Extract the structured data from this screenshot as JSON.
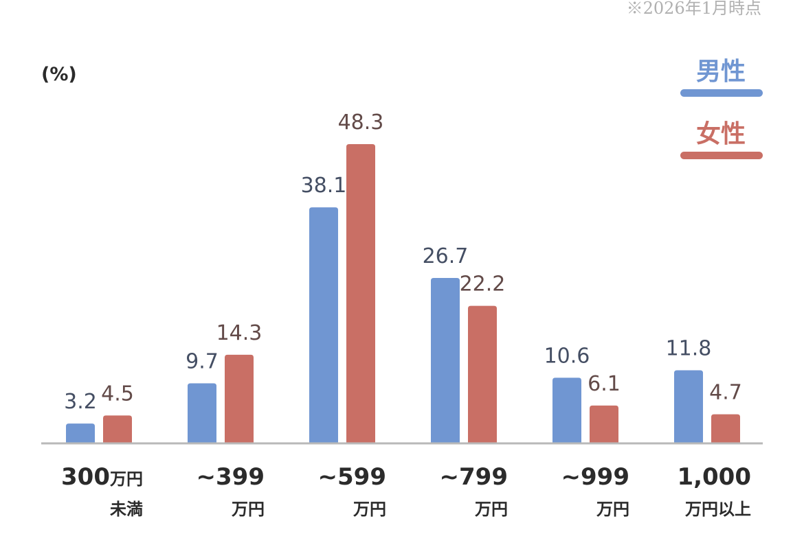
{
  "chart_data": {
    "type": "bar",
    "note": "※2026年1月時点",
    "unit_label": "(%)",
    "categories": [
      {
        "main": "300",
        "suffix": "万円",
        "line2": "未満"
      },
      {
        "main": "~399",
        "suffix": "",
        "line2": "万円"
      },
      {
        "main": "~599",
        "suffix": "",
        "line2": "万円"
      },
      {
        "main": "~799",
        "suffix": "",
        "line2": "万円"
      },
      {
        "main": "~999",
        "suffix": "",
        "line2": "万円"
      },
      {
        "main": "1,000",
        "suffix": "",
        "line2": "万円以上"
      }
    ],
    "series": [
      {
        "name": "男性",
        "color": "#7096d2",
        "label_color": "#444e63",
        "values": [
          3.2,
          9.7,
          38.1,
          26.7,
          10.6,
          11.8
        ]
      },
      {
        "name": "女性",
        "color": "#c96f65",
        "label_color": "#624a48",
        "values": [
          4.5,
          14.3,
          48.3,
          22.2,
          6.1,
          4.7
        ]
      }
    ],
    "ylim": [
      0,
      48.3
    ],
    "legend_position": "top-right",
    "grid": false
  },
  "colors": {
    "axis": "#b9b9b9",
    "category_text": "#2b2b2b",
    "unit_text": "#2b2b2b",
    "note_text": "#b0b0b0"
  }
}
